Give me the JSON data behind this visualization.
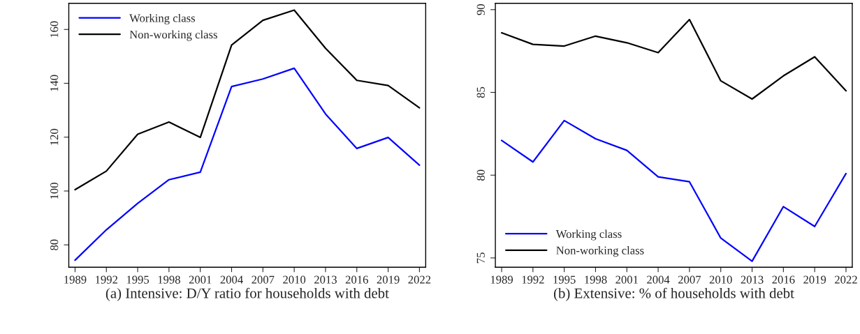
{
  "chart_data": [
    {
      "type": "line",
      "title": "(a) Intensive: D/Y ratio for households with debt",
      "x": [
        1989,
        1992,
        1995,
        1998,
        2001,
        2004,
        2007,
        2010,
        2013,
        2016,
        2019,
        2022
      ],
      "xlim": [
        1988.4,
        2022.6
      ],
      "xticks": [
        1989,
        1992,
        1995,
        1998,
        2001,
        2004,
        2007,
        2010,
        2013,
        2016,
        2019,
        2022
      ],
      "ylim": [
        71.7,
        169.7
      ],
      "yticks": [
        80,
        100,
        120,
        140,
        160
      ],
      "legend": "top left",
      "grid": false,
      "series": [
        {
          "name": "Working class",
          "color": "#0000ff",
          "values": [
            74.3,
            85.6,
            95.4,
            104.2,
            107.0,
            138.8,
            141.6,
            145.6,
            128.6,
            115.8,
            119.9,
            109.6
          ]
        },
        {
          "name": "Non-working class",
          "color": "#000000",
          "values": [
            100.5,
            107.4,
            121.1,
            125.6,
            119.9,
            154.2,
            163.4,
            167.2,
            153.0,
            141.1,
            139.2,
            130.9
          ]
        }
      ]
    },
    {
      "type": "line",
      "title": "(b) Extensive: % of households with debt",
      "x": [
        1989,
        1992,
        1995,
        1998,
        2001,
        2004,
        2007,
        2010,
        2013,
        2016,
        2019,
        2022
      ],
      "xlim": [
        1988.4,
        2022.6
      ],
      "xticks": [
        1989,
        1992,
        1995,
        1998,
        2001,
        2004,
        2007,
        2010,
        2013,
        2016,
        2019,
        2022
      ],
      "ylim": [
        74.44,
        90.38
      ],
      "yticks": [
        75,
        80,
        85,
        90
      ],
      "legend": "bottom left",
      "grid": false,
      "series": [
        {
          "name": "Working class",
          "color": "#0000ff",
          "values": [
            82.1,
            80.8,
            83.3,
            82.2,
            81.5,
            79.9,
            79.6,
            76.2,
            74.8,
            78.1,
            76.9,
            80.1
          ]
        },
        {
          "name": "Non-working class",
          "color": "#000000",
          "values": [
            88.6,
            87.9,
            87.8,
            88.4,
            88.0,
            87.4,
            89.4,
            85.7,
            84.6,
            86.0,
            87.15,
            85.1
          ]
        }
      ]
    }
  ]
}
